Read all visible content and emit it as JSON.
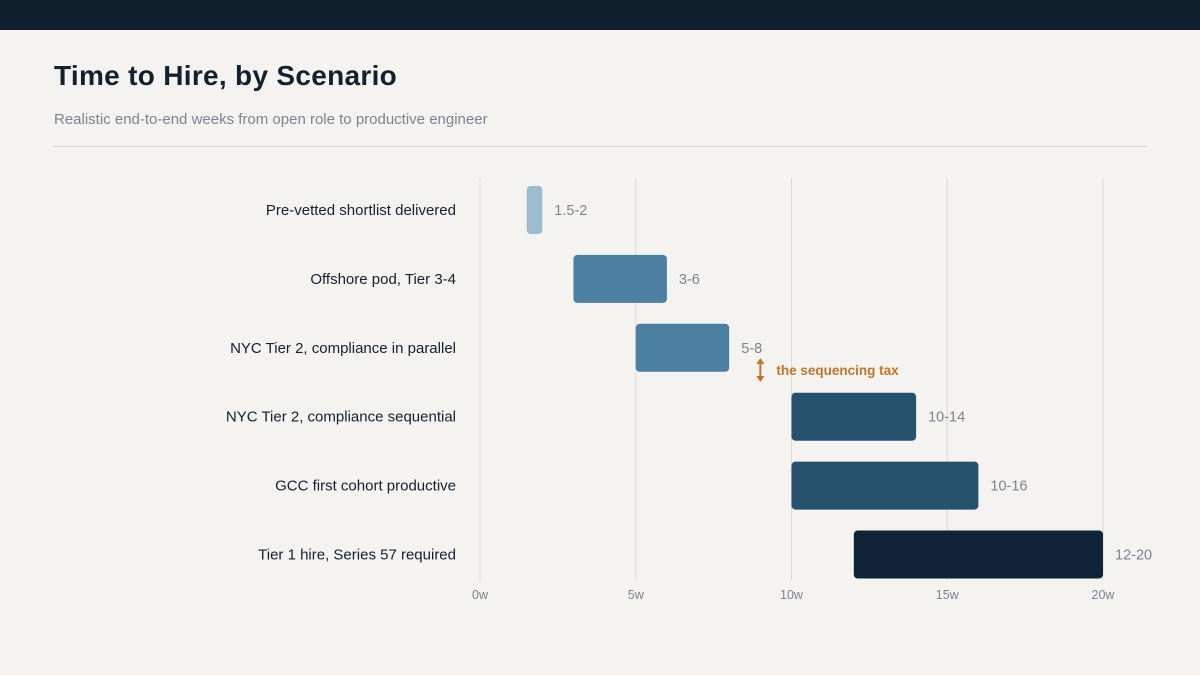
{
  "header": {
    "title": "Time to Hire, by Scenario",
    "subtitle": "Realistic end-to-end weeks from open role to productive engineer"
  },
  "chart_data": {
    "type": "bar",
    "orientation": "horizontal-range",
    "title": "Time to Hire, by Scenario",
    "subtitle": "Realistic end-to-end weeks from open role to productive engineer",
    "xlabel": "",
    "ylabel": "",
    "xlim": [
      0,
      20
    ],
    "x_unit": "weeks",
    "grid": true,
    "ticks": [
      {
        "value": 0,
        "label": "0w"
      },
      {
        "value": 5,
        "label": "5w"
      },
      {
        "value": 10,
        "label": "10w"
      },
      {
        "value": 15,
        "label": "15w"
      },
      {
        "value": 20,
        "label": "20w"
      }
    ],
    "rows": [
      {
        "category": "Pre-vetted shortlist delivered",
        "start": 1.5,
        "end": 2,
        "label": "1.5-2",
        "color": "#9bbbcf"
      },
      {
        "category": "Offshore pod, Tier 3-4",
        "start": 3,
        "end": 6,
        "label": "3-6",
        "color": "#4b80a3"
      },
      {
        "category": "NYC Tier 2, compliance in parallel",
        "start": 5,
        "end": 8,
        "label": "5-8",
        "color": "#4b80a3"
      },
      {
        "category": "NYC Tier 2, compliance sequential",
        "start": 10,
        "end": 14,
        "label": "10-14",
        "color": "#26526d"
      },
      {
        "category": "GCC first cohort productive",
        "start": 10,
        "end": 16,
        "label": "10-16",
        "color": "#26526d"
      },
      {
        "category": "Tier 1 hire, Series 57 required",
        "start": 12,
        "end": 20,
        "label": "12-20",
        "color": "#0f2436"
      }
    ],
    "annotation": {
      "text": "the sequencing tax",
      "x": 9,
      "between": [
        "NYC Tier 2, compliance in parallel",
        "NYC Tier 2, compliance sequential"
      ],
      "color": "#c0752a"
    }
  }
}
